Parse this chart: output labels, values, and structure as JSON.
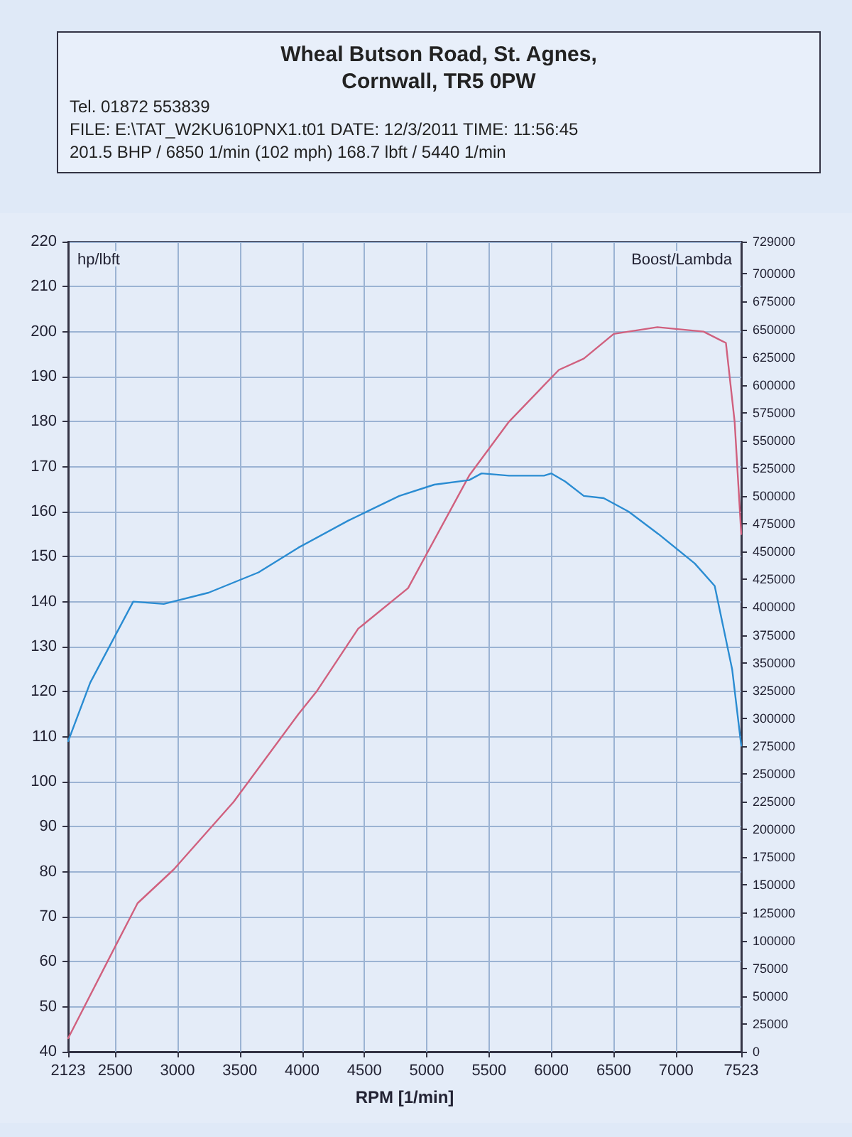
{
  "chart_data": {
    "type": "line",
    "annotations": [
      "Wheal Butson Road, St. Agnes,",
      "Cornwall, TR5 0PW",
      "Tel. 01872 553839",
      "FILE: E:\\TAT_W2KU610PNX1.t01  DATE: 12/3/2011  TIME: 11:56:45",
      "201.5 BHP / 6850 1/min (102 mph)    168.7 lbft / 5440 1/min"
    ],
    "xlabel": "RPM [1/min]",
    "ylabel": "hp/lbft",
    "y2label": "Boost/Lambda",
    "xlim": [
      2123,
      7523
    ],
    "xticks": [
      2123,
      2500,
      3000,
      3500,
      4000,
      4500,
      5000,
      5500,
      6000,
      6500,
      7000,
      7523
    ],
    "ylim": [
      40,
      220
    ],
    "yticks": [
      40,
      50,
      60,
      70,
      80,
      90,
      100,
      110,
      120,
      130,
      140,
      150,
      160,
      170,
      180,
      190,
      200,
      210,
      220
    ],
    "y2lim": [
      0,
      729000
    ],
    "y2ticks": [
      0,
      25000,
      50000,
      75000,
      100000,
      125000,
      150000,
      175000,
      200000,
      225000,
      250000,
      275000,
      300000,
      325000,
      350000,
      375000,
      400000,
      425000,
      450000,
      475000,
      500000,
      525000,
      550000,
      575000,
      600000,
      625000,
      650000,
      675000,
      700000,
      729000
    ],
    "grid": true,
    "marker": "none",
    "line_style": "solid",
    "series": [
      {
        "color": "#d0607e",
        "x": [
          2123,
          2475,
          2680,
          2970,
          3450,
          3970,
          4115,
          4450,
          4850,
          5340,
          5660,
          6060,
          6260,
          6500,
          6850,
          7220,
          7400,
          7470,
          7523
        ],
        "values": [
          43,
          62,
          73,
          80.5,
          95.5,
          115,
          120,
          134,
          143,
          168,
          180,
          191.5,
          194,
          199.5,
          201,
          200,
          197.5,
          180,
          155
        ]
      },
      {
        "color": "#2a8cd2",
        "x": [
          2123,
          2300,
          2645,
          2890,
          3250,
          3650,
          3970,
          4370,
          4780,
          5060,
          5340,
          5440,
          5660,
          5940,
          6000,
          6110,
          6260,
          6420,
          6620,
          6860,
          7150,
          7310,
          7450,
          7523
        ],
        "values": [
          109,
          122,
          140,
          139.5,
          142,
          146.5,
          152,
          158,
          163.5,
          166,
          167,
          168.5,
          168,
          168,
          168.5,
          166.7,
          163.5,
          163,
          160,
          155,
          148.5,
          143.5,
          125,
          108
        ]
      }
    ]
  }
}
